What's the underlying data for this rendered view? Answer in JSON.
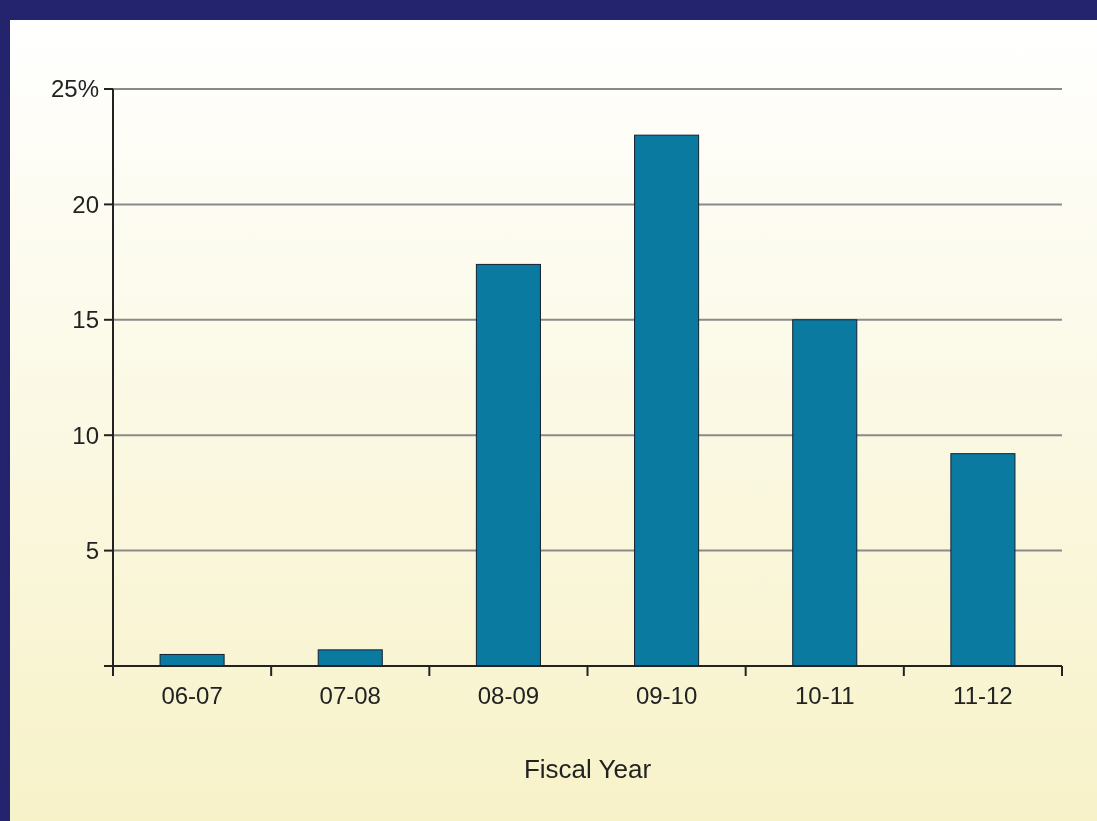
{
  "chart_data": {
    "type": "bar",
    "xlabel": "Fiscal Year",
    "categories": [
      "06-07",
      "07-08",
      "08-09",
      "09-10",
      "10-11",
      "11-12"
    ],
    "values": [
      0.5,
      0.7,
      17.4,
      23.0,
      15.0,
      9.2
    ],
    "color": "#0a7aa0",
    "ylim": [
      0,
      25
    ],
    "yticks": [
      {
        "value": 0,
        "label": null
      },
      5,
      10,
      15,
      20,
      {
        "value": 25,
        "label": "25%"
      }
    ],
    "grid": "y"
  }
}
